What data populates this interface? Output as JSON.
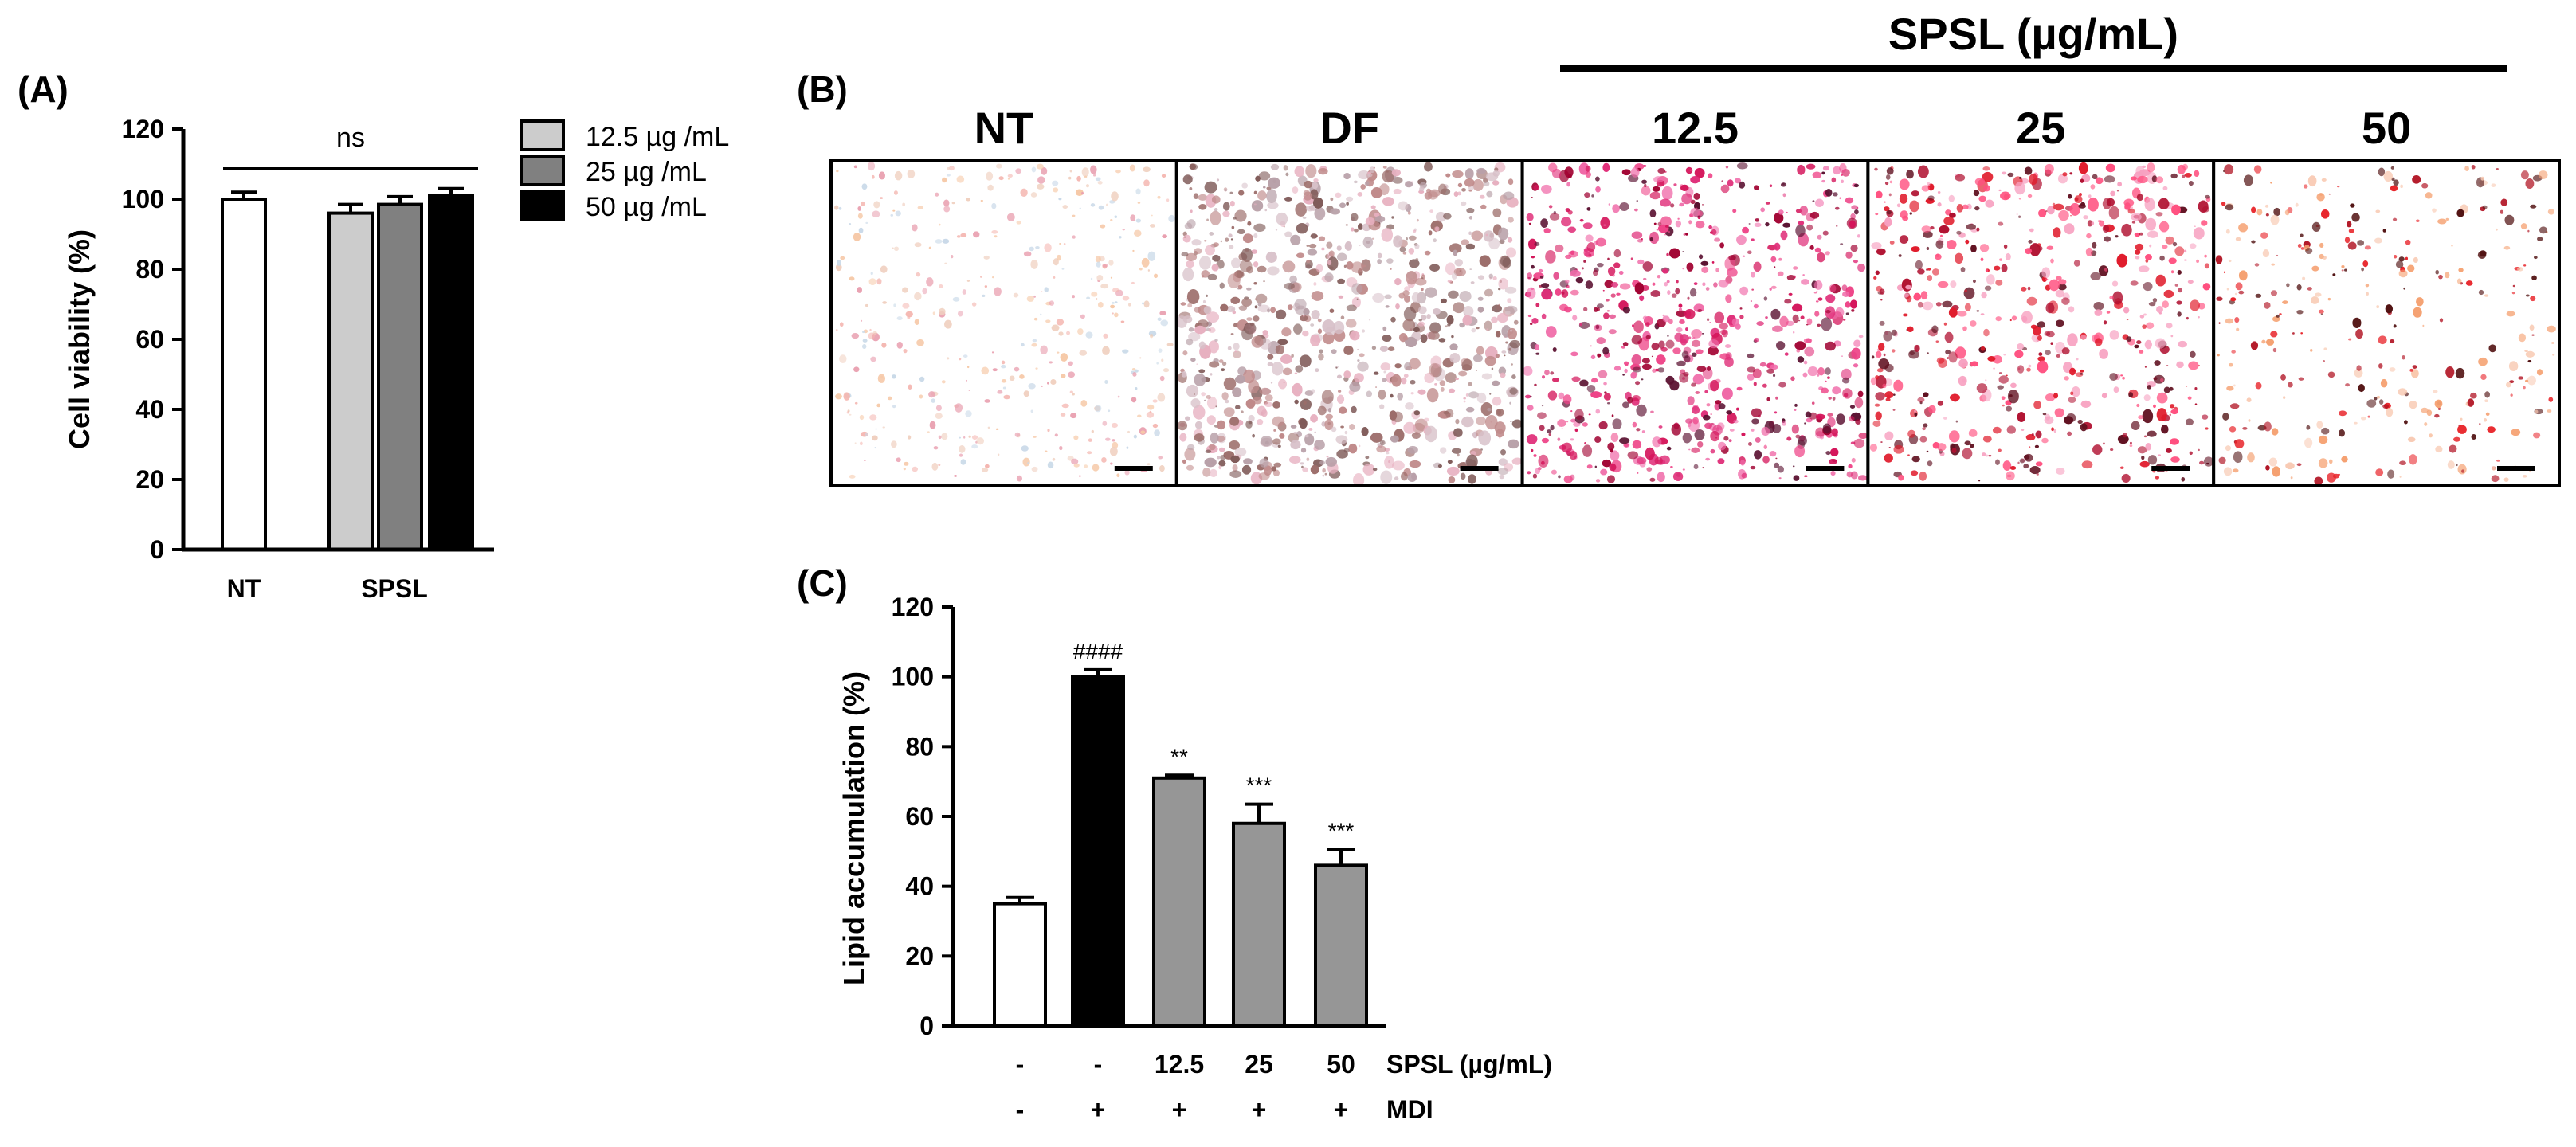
{
  "panels": {
    "a": "(A)",
    "b": "(B)",
    "c": "(C)"
  },
  "chart_data": [
    {
      "type": "bar",
      "panel": "(A)",
      "ylabel": "Cell viability (%)",
      "ylim": [
        0,
        120
      ],
      "yticks": [
        "0",
        "20",
        "40",
        "60",
        "80",
        "100",
        "120"
      ],
      "groups": [
        "NT",
        "SPSL"
      ],
      "significance": "ns",
      "legend": [
        "12.5 µg /mL",
        "25 µg /mL",
        "50 µg /mL"
      ],
      "bars": [
        {
          "group": "NT",
          "value": 100,
          "error": 2.0,
          "color": "#ffffff"
        },
        {
          "group": "SPSL",
          "legend_index": 0,
          "value": 96,
          "error": 2.5,
          "color": "#cccccc"
        },
        {
          "group": "SPSL",
          "legend_index": 1,
          "value": 98.5,
          "error": 2.2,
          "color": "#808080"
        },
        {
          "group": "SPSL",
          "legend_index": 2,
          "value": 101,
          "error": 2.0,
          "color": "#000000"
        }
      ]
    },
    {
      "type": "bar",
      "panel": "(C)",
      "ylabel": "Lipid accumulation (%)",
      "ylim": [
        0,
        120
      ],
      "yticks": [
        "0",
        "20",
        "40",
        "60",
        "80",
        "100",
        "120"
      ],
      "row_labels": [
        "SPSL (µg/mL)",
        "MDI"
      ],
      "bars": [
        {
          "spsl": "-",
          "mdi": "-",
          "value": 35,
          "error": 1.8,
          "color": "#ffffff",
          "sig": ""
        },
        {
          "spsl": "-",
          "mdi": "+",
          "value": 100,
          "error": 2.0,
          "color": "#000000",
          "sig": "####"
        },
        {
          "spsl": "12.5",
          "mdi": "+",
          "value": 71,
          "error": 0.8,
          "color": "#969696",
          "sig": "**"
        },
        {
          "spsl": "25",
          "mdi": "+",
          "value": 58,
          "error": 5.5,
          "color": "#969696",
          "sig": "***"
        },
        {
          "spsl": "50",
          "mdi": "+",
          "value": 46,
          "error": 4.5,
          "color": "#969696",
          "sig": "***"
        }
      ]
    }
  ],
  "micrographs": {
    "header": "SPSL (µg/mL)",
    "labels": [
      "NT",
      "DF",
      "12.5",
      "25",
      "50"
    ]
  }
}
